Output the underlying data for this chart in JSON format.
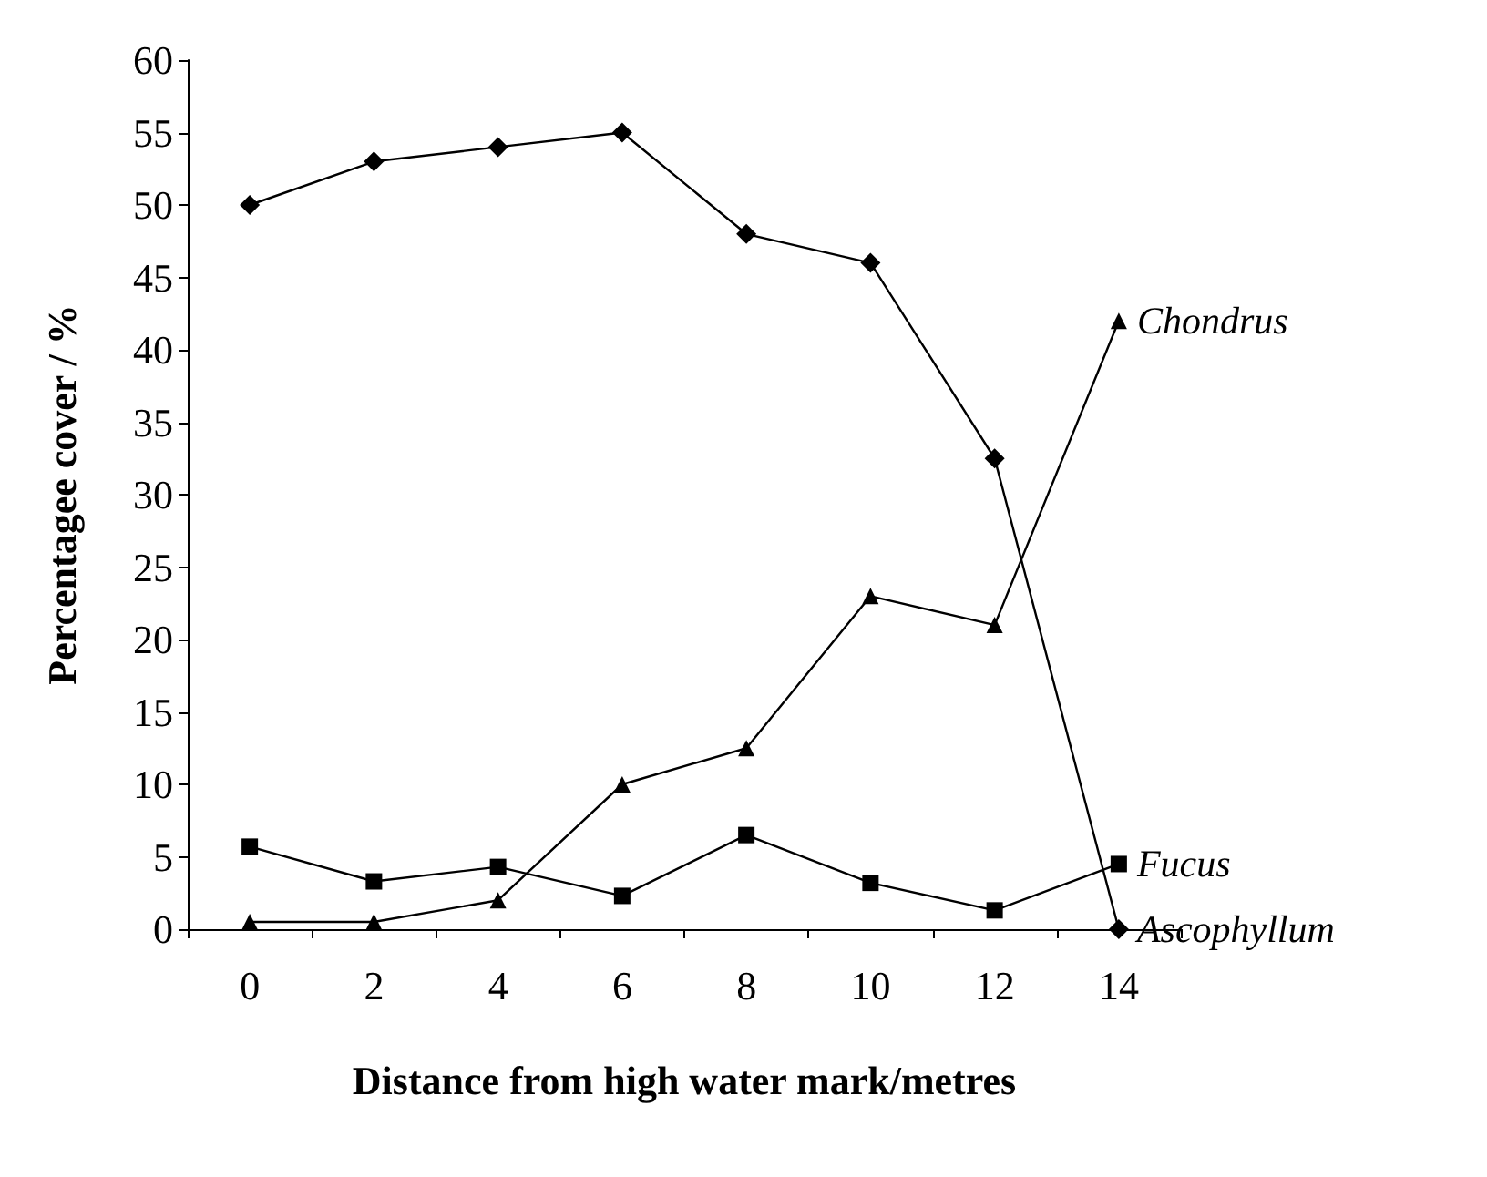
{
  "chart_data": {
    "type": "line",
    "xlabel": "Distance from high water mark/metres",
    "ylabel": "Percentagee cover / %",
    "categories": [
      "0",
      "2",
      "4",
      "6",
      "8",
      "10",
      "12",
      "14"
    ],
    "ylim": [
      0,
      60
    ],
    "yticks": [
      0,
      5,
      10,
      15,
      20,
      25,
      30,
      35,
      40,
      45,
      50,
      55,
      60
    ],
    "grid": false,
    "legend": false,
    "series": [
      {
        "name": "Ascophyllum",
        "color": "#000000",
        "marker": "diamond",
        "values": [
          50,
          53,
          54,
          55,
          48,
          46,
          32.5,
          0
        ]
      },
      {
        "name": "Chondrus",
        "color": "#000000",
        "marker": "triangle",
        "values": [
          0.5,
          0.5,
          2,
          10,
          12.5,
          23,
          21,
          42
        ]
      },
      {
        "name": "Fucus",
        "color": "#000000",
        "marker": "square",
        "values": [
          5.7,
          3.3,
          4.3,
          2.3,
          6.5,
          3.2,
          1.3,
          4.5
        ]
      }
    ]
  }
}
